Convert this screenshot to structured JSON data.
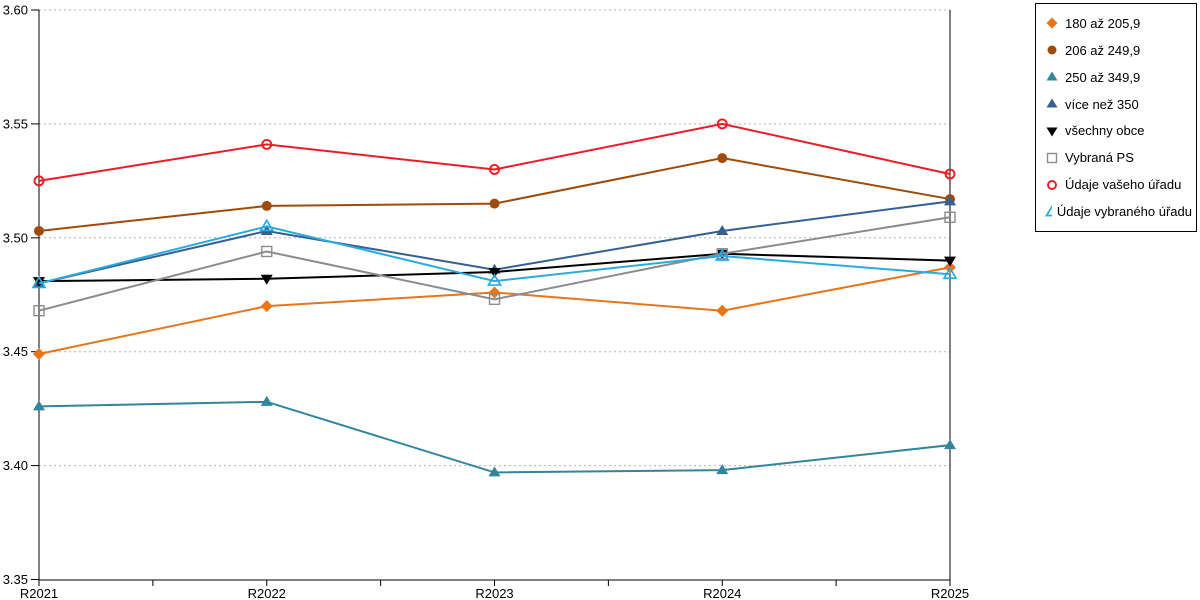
{
  "chart_data": {
    "type": "line",
    "title": "",
    "xlabel": "",
    "ylabel": "",
    "x_categories": [
      "R2021",
      "R2022",
      "R2023",
      "R2024",
      "R2025"
    ],
    "ylim": [
      3.35,
      3.6
    ],
    "y_ticks": [
      3.35,
      3.4,
      3.45,
      3.5,
      3.55,
      3.6
    ],
    "y_tick_labels": [
      "3.35",
      "3.40",
      "3.45",
      "3.50",
      "3.55",
      "3.60"
    ],
    "grid": "horizontal dotted gridlines at each y tick except axis baseline",
    "legend_position": "top-right outside plot",
    "series": [
      {
        "name": "180 až 205,9",
        "color": "#E8751A",
        "marker": "diamond",
        "marker_fill": "filled",
        "values": [
          3.449,
          3.47,
          3.476,
          3.468,
          3.487
        ]
      },
      {
        "name": "206 až 249,9",
        "color": "#9E4B0B",
        "marker": "circle",
        "marker_fill": "filled",
        "values": [
          3.503,
          3.514,
          3.515,
          3.535,
          3.517
        ]
      },
      {
        "name": "250 až 349,9",
        "color": "#31859C",
        "marker": "triangle-up",
        "marker_fill": "filled",
        "values": [
          3.426,
          3.428,
          3.397,
          3.398,
          3.409
        ]
      },
      {
        "name": "více než 350",
        "color": "#366092",
        "marker": "triangle-up",
        "marker_fill": "filled",
        "values": [
          3.48,
          3.503,
          3.486,
          3.503,
          3.516
        ]
      },
      {
        "name": "všechny obce",
        "color": "#000000",
        "marker": "triangle-down",
        "marker_fill": "filled",
        "values": [
          3.481,
          3.482,
          3.485,
          3.493,
          3.49
        ]
      },
      {
        "name": "Vybraná PS",
        "color": "#8C8C8C",
        "marker": "square",
        "marker_fill": "open",
        "values": [
          3.468,
          3.494,
          3.473,
          3.493,
          3.509
        ]
      },
      {
        "name": "Údaje vašeho úřadu",
        "color": "#EC1C24",
        "marker": "circle",
        "marker_fill": "open",
        "values": [
          3.525,
          3.541,
          3.53,
          3.55,
          3.528
        ]
      },
      {
        "name": "Údaje vybraného úřadu",
        "color": "#29ABE2",
        "marker": "triangle-up",
        "marker_fill": "open",
        "values": [
          3.48,
          3.505,
          3.481,
          3.492,
          3.484
        ]
      }
    ],
    "colors": {
      "axis": "#000000",
      "gridline": "#B3B3B3",
      "tick_label": "#000000",
      "legend_border": "#000000"
    }
  }
}
